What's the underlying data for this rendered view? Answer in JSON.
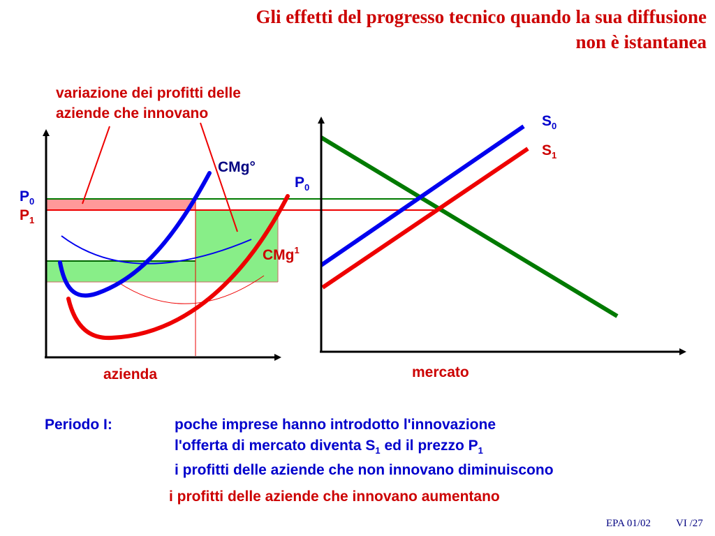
{
  "title": {
    "line1": "Gli effetti del progresso tecnico quando la sua diffusione",
    "line2": "non è istantanea"
  },
  "diagram": {
    "annotation": {
      "line1": "variazione dei profitti delle",
      "line2": "aziende che innovano"
    },
    "left_axis_label": "azienda",
    "right_axis_label": "mercato",
    "p0": {
      "base": "P",
      "sub": "0"
    },
    "p1": {
      "base": "P",
      "sub": "1"
    },
    "p0_market": {
      "base": "P",
      "sub": "0"
    },
    "cmg0": "CMg°",
    "cmg1": {
      "base": "CMg",
      "sup": "1"
    },
    "s0": {
      "base": "S",
      "sub": "0"
    },
    "s1": {
      "base": "S",
      "sub": "1"
    },
    "colors": {
      "blue": "#0000ee",
      "red": "#ee0000",
      "green": "#007a00",
      "fill_green": "#88ee88",
      "fill_red": "#ff9999"
    }
  },
  "text": {
    "period_label": "Periodo I:",
    "line1": "poche imprese hanno introdotto l'innovazione",
    "line2_prefix": "l'offerta di mercato diventa S",
    "line2_sub1": "1",
    "line2_middle": " ed il prezzo P",
    "line2_sub2": "1",
    "line3": "i profitti delle aziende che non innovano diminuiscono",
    "line4": "i profitti delle aziende che innovano aumentano"
  },
  "footer": {
    "left": "EPA 01/02",
    "right": "VI /27"
  }
}
